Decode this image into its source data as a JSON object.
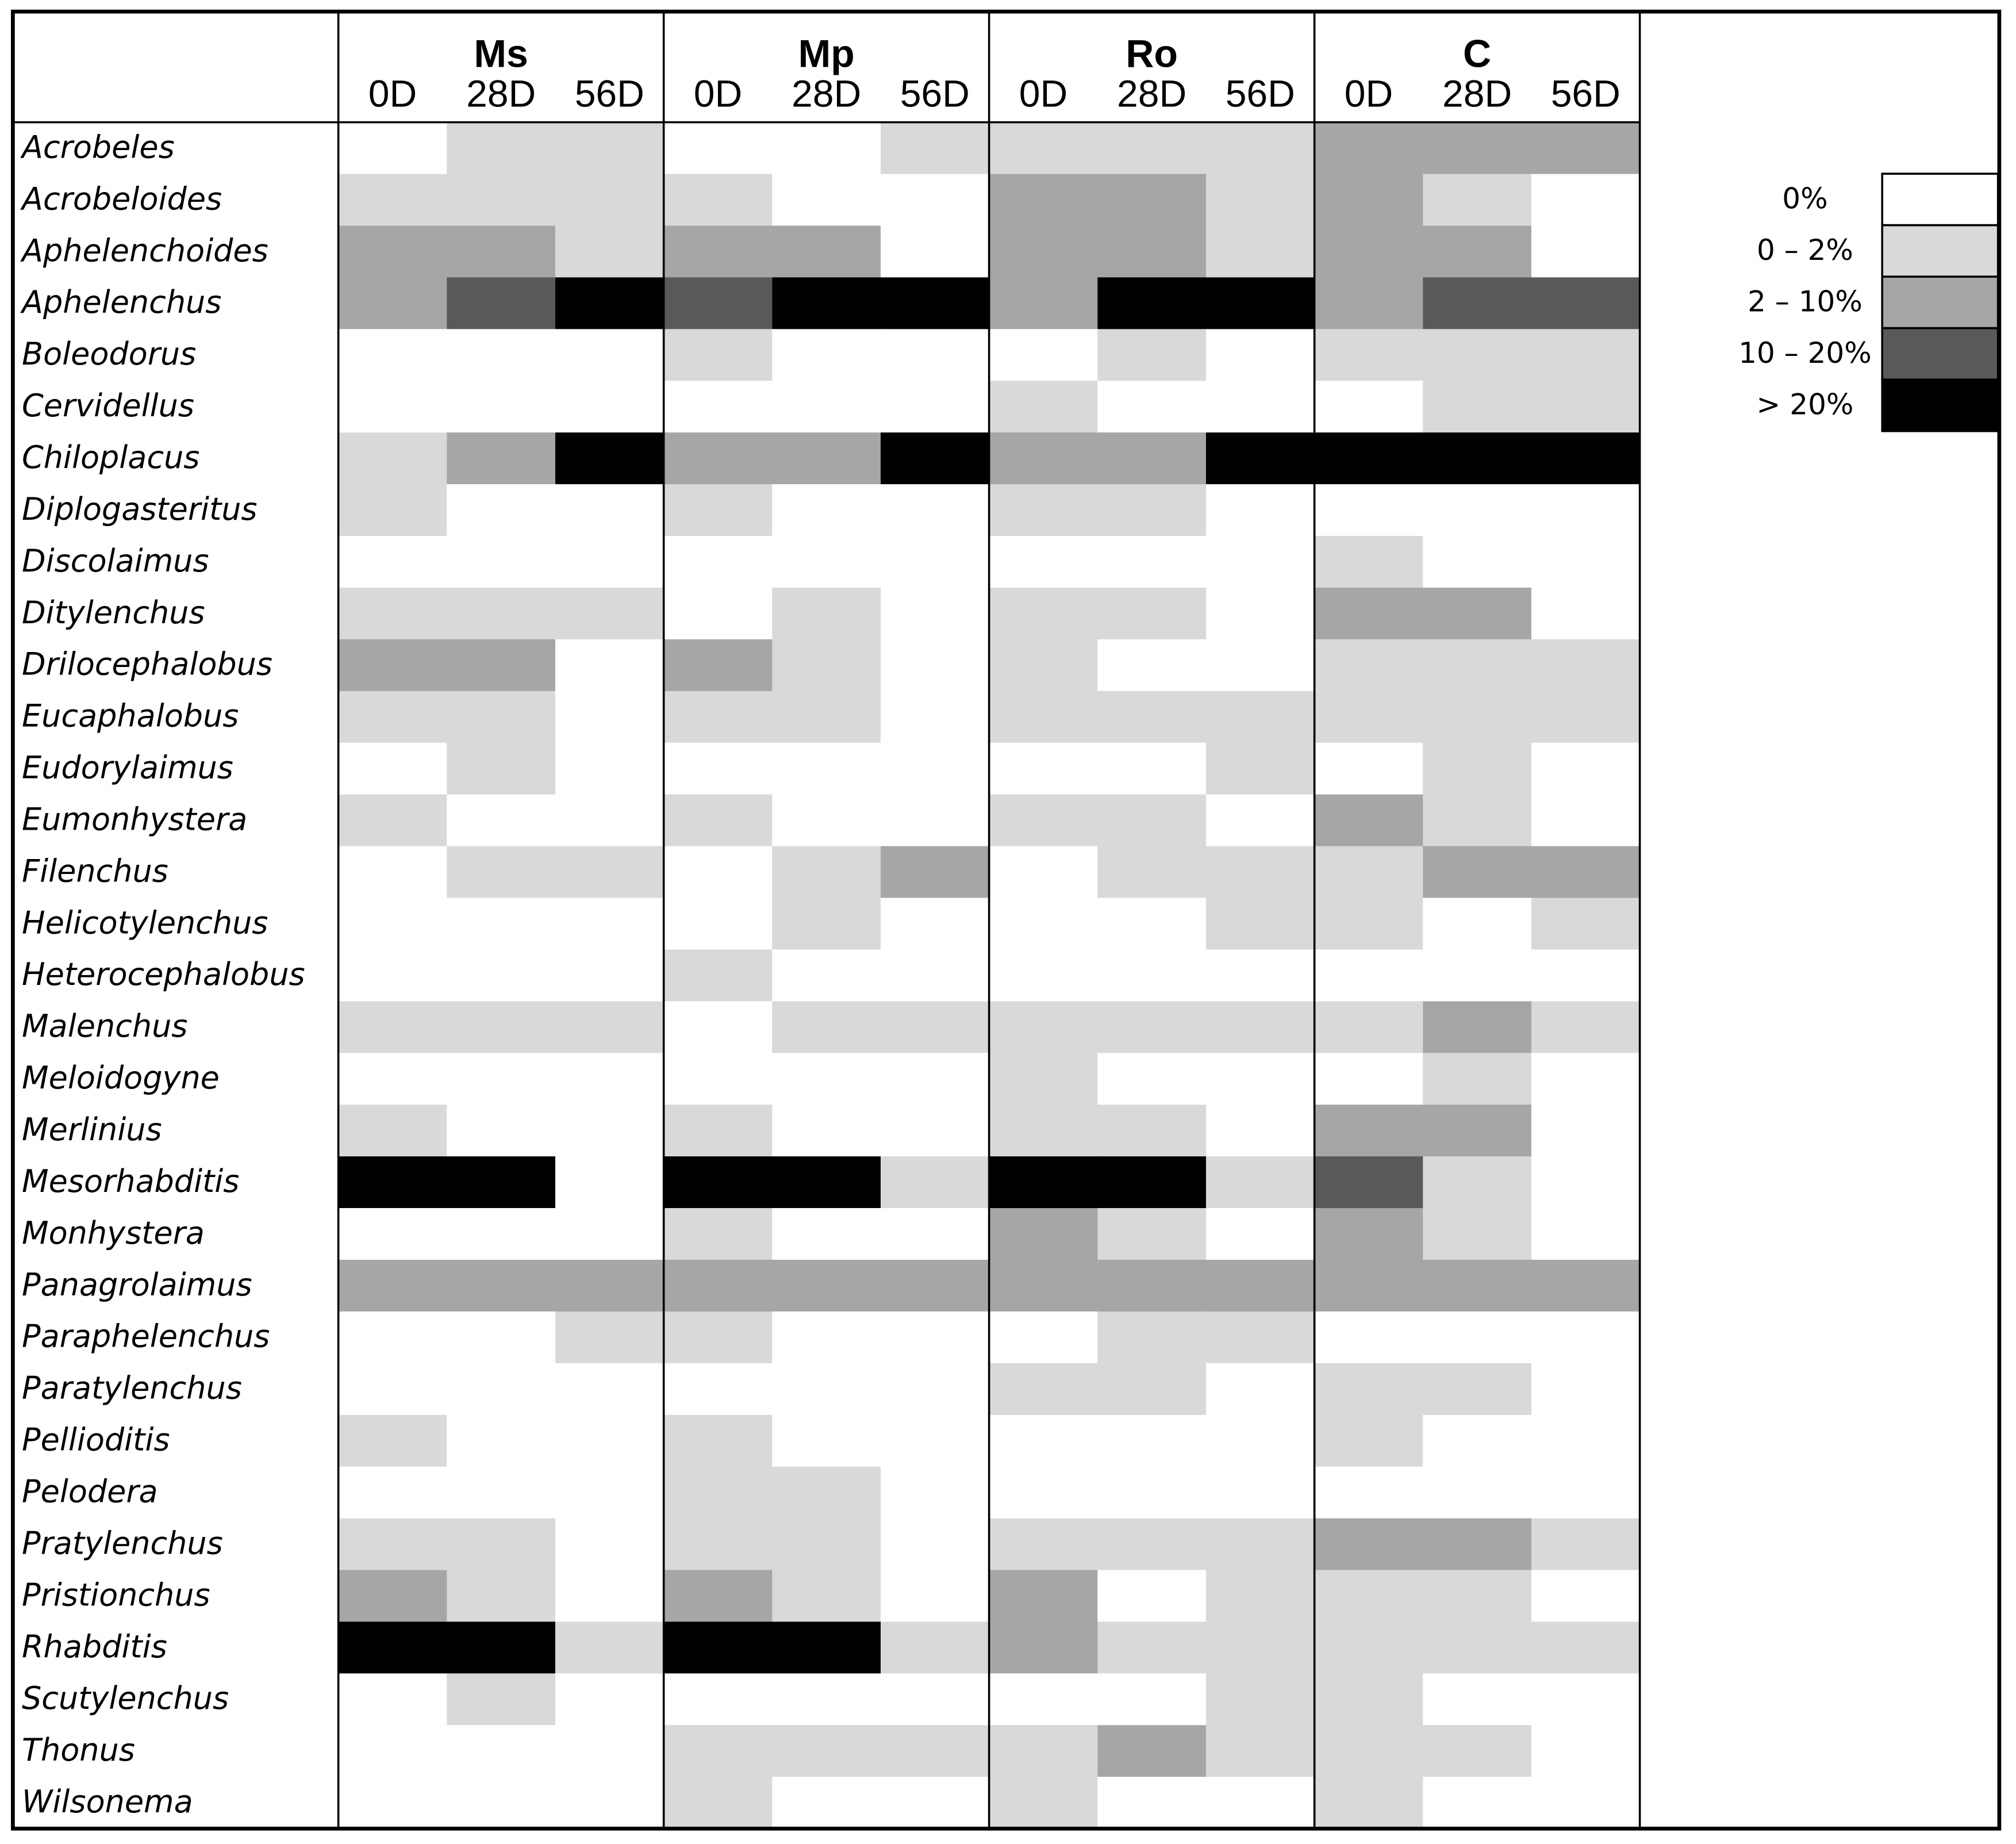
{
  "chart_data": {
    "type": "heatmap",
    "groups": [
      {
        "name": "Ms",
        "days": [
          "0D",
          "28D",
          "56D"
        ]
      },
      {
        "name": "Mp",
        "days": [
          "0D",
          "28D",
          "56D"
        ]
      },
      {
        "name": "Ro",
        "days": [
          "0D",
          "28D",
          "56D"
        ]
      },
      {
        "name": "C",
        "days": [
          "0D",
          "28D",
          "56D"
        ]
      }
    ],
    "legend": [
      {
        "level": 0,
        "label": "0%",
        "color": "#ffffff"
      },
      {
        "level": 1,
        "label": "0 – 2%",
        "color": "#d9d9d9"
      },
      {
        "level": 2,
        "label": "2 – 10%",
        "color": "#a6a6a6"
      },
      {
        "level": 3,
        "label": "10 – 20%",
        "color": "#595959"
      },
      {
        "level": 4,
        "label": "> 20%",
        "color": "#000000"
      }
    ],
    "legend_position": "right",
    "rows": [
      {
        "name": "Acrobeles",
        "levels": [
          0,
          1,
          1,
          0,
          0,
          1,
          1,
          1,
          1,
          2,
          2,
          2
        ]
      },
      {
        "name": "Acrobeloides",
        "levels": [
          1,
          1,
          1,
          1,
          0,
          0,
          2,
          2,
          1,
          2,
          1,
          0
        ]
      },
      {
        "name": "Aphelenchoides",
        "levels": [
          2,
          2,
          1,
          2,
          2,
          0,
          2,
          2,
          1,
          2,
          2,
          0
        ]
      },
      {
        "name": "Aphelenchus",
        "levels": [
          2,
          3,
          4,
          3,
          4,
          4,
          2,
          4,
          4,
          2,
          3,
          3
        ]
      },
      {
        "name": "Boleodorus",
        "levels": [
          0,
          0,
          0,
          1,
          0,
          0,
          0,
          1,
          0,
          1,
          1,
          1
        ]
      },
      {
        "name": "Cervidellus",
        "levels": [
          0,
          0,
          0,
          0,
          0,
          0,
          1,
          0,
          0,
          0,
          1,
          1
        ]
      },
      {
        "name": "Chiloplacus",
        "levels": [
          1,
          2,
          4,
          2,
          2,
          4,
          2,
          2,
          4,
          4,
          4,
          4
        ]
      },
      {
        "name": "Diplogasteritus",
        "levels": [
          1,
          0,
          0,
          1,
          0,
          0,
          1,
          1,
          0,
          0,
          0,
          0
        ]
      },
      {
        "name": "Discolaimus",
        "levels": [
          0,
          0,
          0,
          0,
          0,
          0,
          0,
          0,
          0,
          1,
          0,
          0
        ]
      },
      {
        "name": "Ditylenchus",
        "levels": [
          1,
          1,
          1,
          0,
          1,
          0,
          1,
          1,
          0,
          2,
          2,
          0
        ]
      },
      {
        "name": "Drilocephalobus",
        "levels": [
          2,
          2,
          0,
          2,
          1,
          0,
          1,
          0,
          0,
          1,
          1,
          1
        ]
      },
      {
        "name": "Eucaphalobus",
        "levels": [
          1,
          1,
          0,
          1,
          1,
          0,
          1,
          1,
          1,
          1,
          1,
          1
        ]
      },
      {
        "name": "Eudorylaimus",
        "levels": [
          0,
          1,
          0,
          0,
          0,
          0,
          0,
          0,
          1,
          0,
          1,
          0
        ]
      },
      {
        "name": "Eumonhystera",
        "levels": [
          1,
          0,
          0,
          1,
          0,
          0,
          1,
          1,
          0,
          2,
          1,
          0
        ]
      },
      {
        "name": "Filenchus",
        "levels": [
          0,
          1,
          1,
          0,
          1,
          2,
          0,
          1,
          1,
          1,
          2,
          2
        ]
      },
      {
        "name": "Helicotylenchus",
        "levels": [
          0,
          0,
          0,
          0,
          1,
          0,
          0,
          0,
          1,
          1,
          0,
          1
        ]
      },
      {
        "name": "Heterocephalobus",
        "levels": [
          0,
          0,
          0,
          1,
          0,
          0,
          0,
          0,
          0,
          0,
          0,
          0
        ]
      },
      {
        "name": "Malenchus",
        "levels": [
          1,
          1,
          1,
          0,
          1,
          1,
          1,
          1,
          1,
          1,
          2,
          1
        ]
      },
      {
        "name": "Meloidogyne",
        "levels": [
          0,
          0,
          0,
          0,
          0,
          0,
          1,
          0,
          0,
          0,
          1,
          0
        ]
      },
      {
        "name": "Merlinius",
        "levels": [
          1,
          0,
          0,
          1,
          0,
          0,
          1,
          1,
          0,
          2,
          2,
          0
        ]
      },
      {
        "name": "Mesorhabditis",
        "levels": [
          4,
          4,
          0,
          4,
          4,
          1,
          4,
          4,
          1,
          3,
          1,
          0
        ]
      },
      {
        "name": "Monhystera",
        "levels": [
          0,
          0,
          0,
          1,
          0,
          0,
          2,
          1,
          0,
          2,
          1,
          0
        ]
      },
      {
        "name": "Panagrolaimus",
        "levels": [
          2,
          2,
          2,
          2,
          2,
          2,
          2,
          2,
          2,
          2,
          2,
          2
        ]
      },
      {
        "name": "Paraphelenchus",
        "levels": [
          0,
          0,
          1,
          1,
          0,
          0,
          0,
          1,
          1,
          0,
          0,
          0
        ]
      },
      {
        "name": "Paratylenchus",
        "levels": [
          0,
          0,
          0,
          0,
          0,
          0,
          1,
          1,
          0,
          1,
          1,
          0
        ]
      },
      {
        "name": "Pellioditis",
        "levels": [
          1,
          0,
          0,
          1,
          0,
          0,
          0,
          0,
          0,
          1,
          0,
          0
        ]
      },
      {
        "name": "Pelodera",
        "levels": [
          0,
          0,
          0,
          1,
          1,
          0,
          0,
          0,
          0,
          0,
          0,
          0
        ]
      },
      {
        "name": "Pratylenchus",
        "levels": [
          1,
          1,
          0,
          1,
          1,
          0,
          1,
          1,
          1,
          2,
          2,
          1
        ]
      },
      {
        "name": "Pristionchus",
        "levels": [
          2,
          1,
          0,
          2,
          1,
          0,
          2,
          0,
          1,
          1,
          1,
          0
        ]
      },
      {
        "name": "Rhabditis",
        "levels": [
          4,
          4,
          1,
          4,
          4,
          1,
          2,
          1,
          1,
          1,
          1,
          1
        ]
      },
      {
        "name": "Scutylenchus",
        "levels": [
          0,
          1,
          0,
          0,
          0,
          0,
          0,
          0,
          1,
          1,
          0,
          0
        ]
      },
      {
        "name": "Thonus",
        "levels": [
          0,
          0,
          0,
          1,
          1,
          1,
          1,
          2,
          1,
          1,
          1,
          0
        ]
      },
      {
        "name": "Wilsonema",
        "levels": [
          0,
          0,
          0,
          1,
          0,
          0,
          1,
          0,
          0,
          1,
          0,
          0
        ]
      }
    ]
  }
}
